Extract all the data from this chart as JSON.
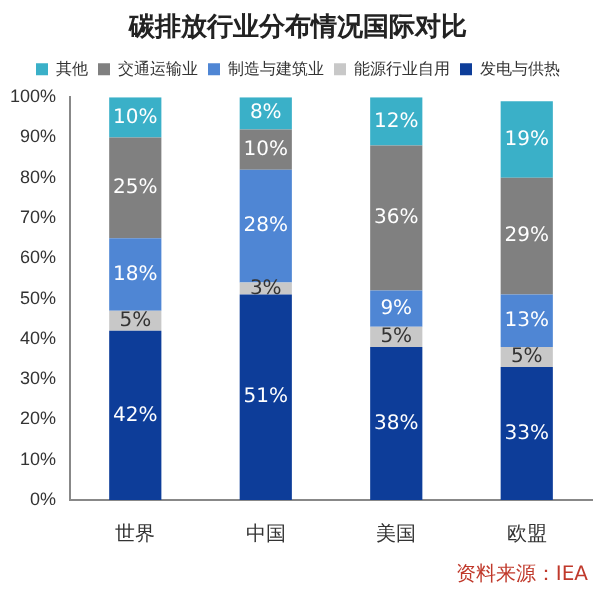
{
  "chart_data": {
    "type": "bar",
    "title": "碳排放行业分布情况国际对比",
    "categories": [
      "世界",
      "中国",
      "美国",
      "欧盟"
    ],
    "stacked": true,
    "legend": "top",
    "grid": false,
    "series": [
      {
        "name": "发电与供热",
        "color": "#0d3d99",
        "values": [
          42,
          51,
          38,
          33
        ],
        "value_labels": [
          "42%",
          "51%",
          "38%",
          "33%"
        ]
      },
      {
        "name": "能源行业自用",
        "color": "#c8c8c8",
        "values": [
          5,
          3,
          5,
          5
        ],
        "value_labels": [
          "5%",
          "3%",
          "5%",
          "5%"
        ]
      },
      {
        "name": "制造与建筑业",
        "color": "#4f86d4",
        "values": [
          18,
          28,
          9,
          13
        ],
        "value_labels": [
          "18%",
          "28%",
          "9%",
          "13%"
        ]
      },
      {
        "name": "交通运输业",
        "color": "#808080",
        "values": [
          25,
          10,
          36,
          29
        ],
        "value_labels": [
          "25%",
          "10%",
          "36%",
          "29%"
        ]
      },
      {
        "name": "其他",
        "color": "#3ab0c8",
        "values": [
          10,
          8,
          12,
          19
        ],
        "value_labels": [
          "10%",
          "8%",
          "12%",
          "19%"
        ]
      }
    ],
    "ylim": [
      0,
      100
    ],
    "yticks": [
      {
        "value": 0,
        "label": "0%"
      },
      {
        "value": 10,
        "label": "10%"
      },
      {
        "value": 20,
        "label": "20%"
      },
      {
        "value": 30,
        "label": "30%"
      },
      {
        "value": 40,
        "label": "40%"
      },
      {
        "value": 50,
        "label": "50%"
      },
      {
        "value": 60,
        "label": "60%"
      },
      {
        "value": 70,
        "label": "70%"
      },
      {
        "value": 80,
        "label": "80%"
      },
      {
        "value": 90,
        "label": "90%"
      },
      {
        "value": 100,
        "label": "100%"
      }
    ],
    "annotations": [
      "资料来源：IEA"
    ]
  }
}
